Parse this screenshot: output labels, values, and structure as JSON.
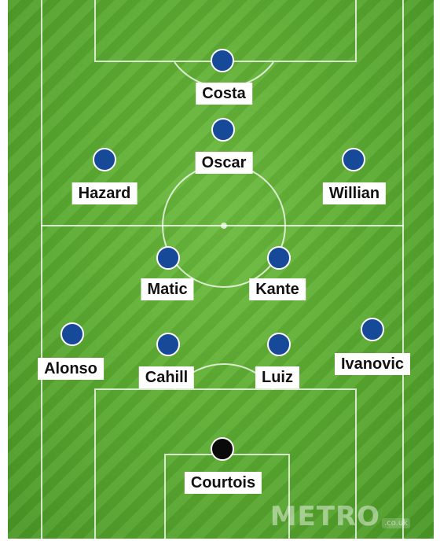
{
  "pitch": {
    "players": [
      {
        "name": "Costa",
        "role": "outfield"
      },
      {
        "name": "Oscar",
        "role": "outfield"
      },
      {
        "name": "Hazard",
        "role": "outfield"
      },
      {
        "name": "Willian",
        "role": "outfield"
      },
      {
        "name": "Matic",
        "role": "outfield"
      },
      {
        "name": "Kante",
        "role": "outfield"
      },
      {
        "name": "Alonso",
        "role": "outfield"
      },
      {
        "name": "Cahill",
        "role": "outfield"
      },
      {
        "name": "Luiz",
        "role": "outfield"
      },
      {
        "name": "Ivanovic",
        "role": "outfield"
      },
      {
        "name": "Courtois",
        "role": "goalkeeper"
      }
    ]
  },
  "colors": {
    "pitch_green": "#5cac32",
    "outfield_kit": "#164a99",
    "goalkeeper_kit": "#0a0a0a"
  }
}
